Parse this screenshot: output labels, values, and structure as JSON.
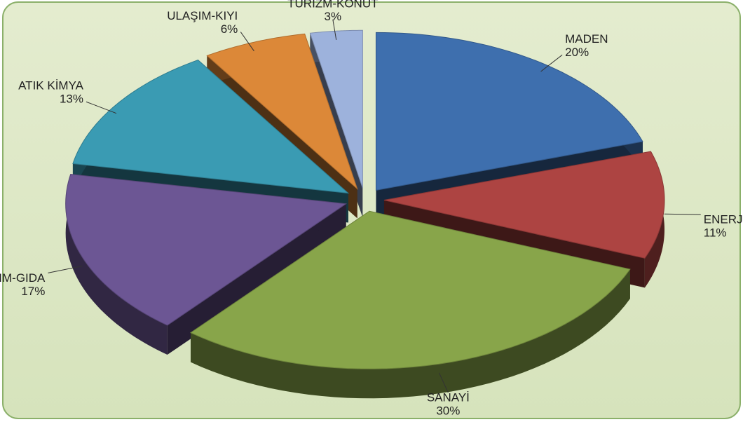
{
  "chart_data": {
    "type": "pie",
    "categories": [
      "MADEN",
      "ENERJİ",
      "SANAYİ",
      "TARIM-GIDA",
      "ATIK KİMYA",
      "ULAŞIM-KIYI",
      "TURİZM-KONUT"
    ],
    "values": [
      20,
      11,
      30,
      17,
      13,
      6,
      3
    ],
    "value_labels": [
      "20%",
      "11%",
      "30%",
      "17%",
      "13%",
      "6%",
      "3%"
    ],
    "colors": [
      "#3e6fae",
      "#ad4442",
      "#88a54a",
      "#6c5694",
      "#3a9bb3",
      "#dc8838",
      "#9db2dc"
    ]
  }
}
